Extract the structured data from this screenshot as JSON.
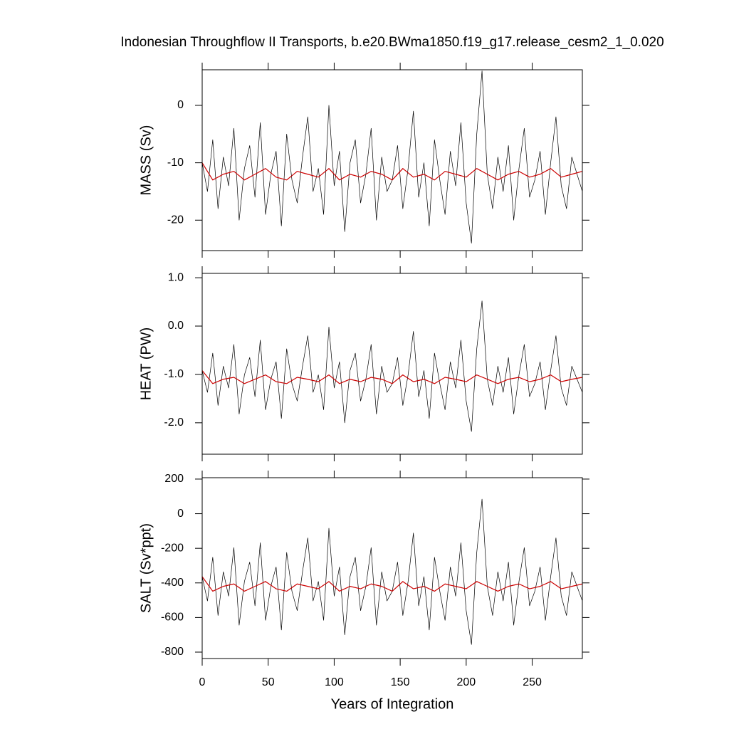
{
  "chart_data": [
    {
      "type": "line",
      "title": "Indonesian Throughflow II Transports, b.e20.BWma1850.f19_g17.release_cesm2_1_0.020",
      "ylabel": "MASS (Sv)",
      "xlim": [
        0,
        288
      ],
      "xticks": [
        0,
        50,
        100,
        150,
        200,
        250
      ],
      "ylim": [
        -25.3,
        6.2
      ],
      "yticks": [
        -20,
        -10,
        0
      ],
      "series": [
        {
          "color": "#000000",
          "x": [
            0,
            4,
            8,
            12,
            16,
            20,
            24,
            28,
            32,
            36,
            40,
            44,
            48,
            52,
            56,
            60,
            64,
            68,
            72,
            76,
            80,
            84,
            88,
            92,
            96,
            100,
            104,
            108,
            112,
            116,
            120,
            124,
            128,
            132,
            136,
            140,
            144,
            148,
            152,
            156,
            160,
            164,
            168,
            172,
            176,
            180,
            184,
            188,
            192,
            196,
            200,
            204,
            208,
            212,
            216,
            220,
            224,
            228,
            232,
            236,
            240,
            244,
            248,
            252,
            256,
            260,
            264,
            268,
            272,
            276,
            280,
            284,
            288
          ],
          "values": [
            -10,
            -15,
            -6,
            -18,
            -9,
            -14,
            -4,
            -20,
            -11,
            -7,
            -16,
            -3,
            -19,
            -12,
            -8,
            -21,
            -5,
            -13,
            -17,
            -9,
            -2,
            -15,
            -11,
            -19,
            0,
            -14,
            -8,
            -22,
            -10,
            -6,
            -17,
            -12,
            -4,
            -20,
            -9,
            -15,
            -13,
            -7,
            -18,
            -11,
            -1,
            -16,
            -10,
            -21,
            -6,
            -13,
            -19,
            -8,
            -14,
            -3,
            -17,
            -24,
            -5,
            6,
            -12,
            -18,
            -9,
            -15,
            -7,
            -20,
            -11,
            -4,
            -16,
            -13,
            -8,
            -19,
            -10,
            -2,
            -14,
            -18,
            -9,
            -12,
            -15
          ]
        },
        {
          "color": "#cc0000",
          "x": [
            0,
            8,
            16,
            24,
            32,
            40,
            48,
            56,
            64,
            72,
            80,
            88,
            96,
            104,
            112,
            120,
            128,
            136,
            144,
            152,
            160,
            168,
            176,
            184,
            192,
            200,
            208,
            216,
            224,
            232,
            240,
            248,
            256,
            264,
            272,
            280,
            288
          ],
          "values": [
            -10,
            -13,
            -12,
            -11.5,
            -13,
            -12,
            -11,
            -12.5,
            -13,
            -11.5,
            -12,
            -12.5,
            -11,
            -13,
            -12,
            -12.5,
            -11.5,
            -12,
            -13,
            -11,
            -12.5,
            -12,
            -13,
            -11.5,
            -12,
            -12.5,
            -11,
            -12,
            -13,
            -12,
            -11.5,
            -12.5,
            -12,
            -11,
            -12.5,
            -12,
            -11.5
          ]
        }
      ]
    },
    {
      "type": "line",
      "ylabel": "HEAT (PW)",
      "xlim": [
        0,
        288
      ],
      "xticks": [
        0,
        50,
        100,
        150,
        200,
        250
      ],
      "ylim": [
        -2.65,
        1.09
      ],
      "yticks": [
        {
          "value": -2,
          "label": "-2.0"
        },
        {
          "value": -1,
          "label": "-1.0"
        },
        {
          "value": 0,
          "label": "0.0"
        },
        {
          "value": 1,
          "label": "1.0"
        }
      ],
      "series": [
        {
          "color": "#000000",
          "x": [
            0,
            4,
            8,
            12,
            16,
            20,
            24,
            28,
            32,
            36,
            40,
            44,
            48,
            52,
            56,
            60,
            64,
            68,
            72,
            76,
            80,
            84,
            88,
            92,
            96,
            100,
            104,
            108,
            112,
            116,
            120,
            124,
            128,
            132,
            136,
            140,
            144,
            148,
            152,
            156,
            160,
            164,
            168,
            172,
            176,
            180,
            184,
            188,
            192,
            196,
            200,
            204,
            208,
            212,
            216,
            220,
            224,
            228,
            232,
            236,
            240,
            244,
            248,
            252,
            256,
            260,
            264,
            268,
            272,
            276,
            280,
            284,
            288
          ],
          "values": [
            -0.92,
            -1.37,
            -0.56,
            -1.64,
            -0.83,
            -1.28,
            -0.38,
            -1.82,
            -1.01,
            -0.65,
            -1.46,
            -0.29,
            -1.73,
            -1.1,
            -0.74,
            -1.91,
            -0.47,
            -1.19,
            -1.55,
            -0.83,
            -0.2,
            -1.37,
            -1.01,
            -1.73,
            -0.02,
            -1.28,
            -0.74,
            -2.0,
            -0.92,
            -0.56,
            -1.55,
            -1.1,
            -0.38,
            -1.82,
            -0.83,
            -1.37,
            -1.19,
            -0.65,
            -1.64,
            -1.01,
            -0.11,
            -1.46,
            -0.92,
            -1.91,
            -0.56,
            -1.19,
            -1.73,
            -0.74,
            -1.28,
            -0.29,
            -1.55,
            -2.18,
            -0.47,
            0.52,
            -1.1,
            -1.64,
            -0.83,
            -1.37,
            -0.65,
            -1.82,
            -1.01,
            -0.38,
            -1.46,
            -1.19,
            -0.74,
            -1.73,
            -0.92,
            -0.2,
            -1.28,
            -1.64,
            -0.83,
            -1.1,
            -1.37
          ]
        },
        {
          "color": "#cc0000",
          "x": [
            0,
            8,
            16,
            24,
            32,
            40,
            48,
            56,
            64,
            72,
            80,
            88,
            96,
            104,
            112,
            120,
            128,
            136,
            144,
            152,
            160,
            168,
            176,
            184,
            192,
            200,
            208,
            216,
            224,
            232,
            240,
            248,
            256,
            264,
            272,
            280,
            288
          ],
          "values": [
            -0.92,
            -1.19,
            -1.1,
            -1.06,
            -1.19,
            -1.1,
            -1.01,
            -1.15,
            -1.19,
            -1.06,
            -1.1,
            -1.15,
            -1.01,
            -1.19,
            -1.1,
            -1.15,
            -1.06,
            -1.1,
            -1.19,
            -1.01,
            -1.15,
            -1.1,
            -1.19,
            -1.06,
            -1.1,
            -1.15,
            -1.01,
            -1.1,
            -1.19,
            -1.1,
            -1.06,
            -1.15,
            -1.1,
            -1.01,
            -1.15,
            -1.1,
            -1.06
          ]
        }
      ]
    },
    {
      "type": "line",
      "ylabel": "SALT (Sv*ppt)",
      "xlabel": "Years of Integration",
      "xlim": [
        0,
        288
      ],
      "xticks": [
        0,
        50,
        100,
        150,
        200,
        250
      ],
      "ylim": [
        -837,
        208
      ],
      "yticks": [
        -800,
        -600,
        -400,
        -200,
        0,
        200
      ],
      "series": [
        {
          "color": "#000000",
          "x": [
            0,
            4,
            8,
            12,
            16,
            20,
            24,
            28,
            32,
            36,
            40,
            44,
            48,
            52,
            56,
            60,
            64,
            68,
            72,
            76,
            80,
            84,
            88,
            92,
            96,
            100,
            104,
            108,
            112,
            116,
            120,
            124,
            128,
            132,
            136,
            140,
            144,
            148,
            152,
            156,
            160,
            164,
            168,
            172,
            176,
            180,
            184,
            188,
            192,
            196,
            200,
            204,
            208,
            212,
            216,
            220,
            224,
            228,
            232,
            236,
            240,
            244,
            248,
            252,
            256,
            260,
            264,
            268,
            272,
            276,
            280,
            284,
            288
          ],
          "values": [
            -364,
            -504,
            -252,
            -588,
            -336,
            -476,
            -196,
            -644,
            -392,
            -280,
            -532,
            -168,
            -616,
            -420,
            -308,
            -672,
            -224,
            -448,
            -560,
            -336,
            -140,
            -504,
            -392,
            -616,
            -84,
            -476,
            -308,
            -700,
            -364,
            -252,
            -560,
            -420,
            -196,
            -644,
            -336,
            -504,
            -448,
            -280,
            -588,
            -392,
            -112,
            -532,
            -364,
            -672,
            -252,
            -448,
            -616,
            -308,
            -476,
            -168,
            -560,
            -756,
            -224,
            84,
            -420,
            -588,
            -336,
            -504,
            -280,
            -644,
            -392,
            -196,
            -532,
            -448,
            -308,
            -616,
            -364,
            -140,
            -476,
            -588,
            -336,
            -420,
            -504
          ]
        },
        {
          "color": "#cc0000",
          "x": [
            0,
            8,
            16,
            24,
            32,
            40,
            48,
            56,
            64,
            72,
            80,
            88,
            96,
            104,
            112,
            120,
            128,
            136,
            144,
            152,
            160,
            168,
            176,
            184,
            192,
            200,
            208,
            216,
            224,
            232,
            240,
            248,
            256,
            264,
            272,
            280,
            288
          ],
          "values": [
            -364,
            -448,
            -420,
            -406,
            -448,
            -420,
            -392,
            -434,
            -448,
            -406,
            -420,
            -434,
            -392,
            -448,
            -420,
            -434,
            -406,
            -420,
            -448,
            -392,
            -434,
            -420,
            -448,
            -406,
            -420,
            -434,
            -392,
            -420,
            -448,
            -420,
            -406,
            -434,
            -420,
            -392,
            -434,
            -420,
            -406
          ]
        }
      ]
    }
  ]
}
